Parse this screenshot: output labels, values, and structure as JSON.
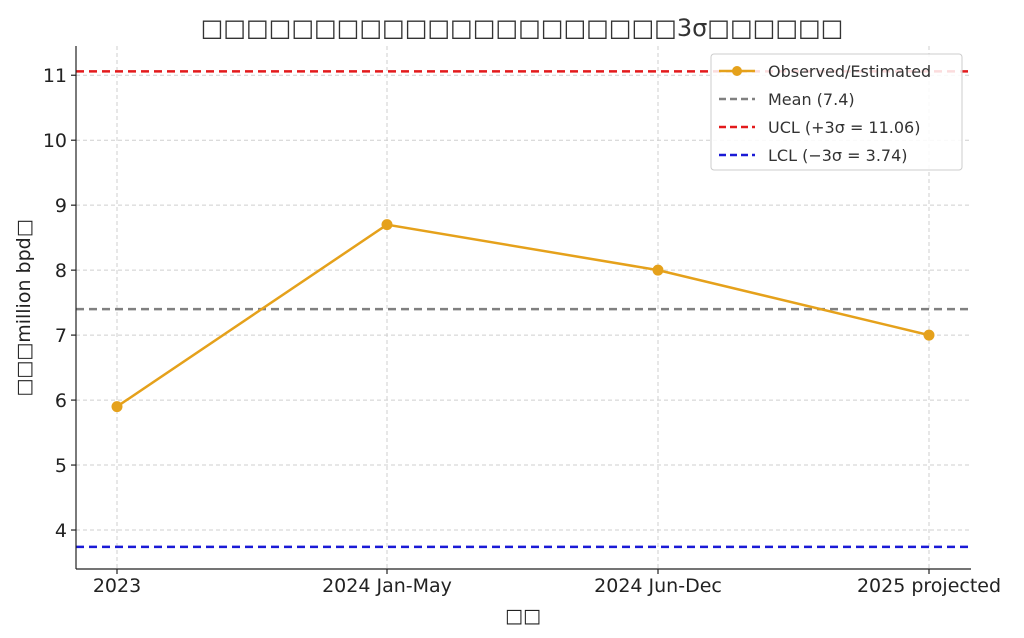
{
  "chart_data": {
    "type": "line",
    "title": "□□□□□□□□□□□□□□□□□□□□□3σ□□□□□□",
    "xlabel": "□□",
    "ylabel": "□□□million bpd□",
    "categories": [
      "2023",
      "2024 Jan-May",
      "2024 Jun-Dec",
      "2025 projected"
    ],
    "series": [
      {
        "name": "Observed/Estimated",
        "values": [
          5.9,
          8.7,
          8.0,
          7.0
        ],
        "color": "#E5A11B"
      }
    ],
    "reference_lines": [
      {
        "name": "Mean (7.4)",
        "value": 7.4,
        "color": "#808080"
      },
      {
        "name": "UCL (+3σ = 11.06)",
        "value": 11.06,
        "color": "#E31A1C"
      },
      {
        "name": "LCL (−3σ = 3.74)",
        "value": 3.74,
        "color": "#1A1AD6"
      }
    ],
    "yticks": [
      4,
      5,
      6,
      7,
      8,
      9,
      10,
      11
    ],
    "ylim": [
      3.4,
      11.45
    ],
    "grid": true,
    "legend_position": "top-right"
  }
}
